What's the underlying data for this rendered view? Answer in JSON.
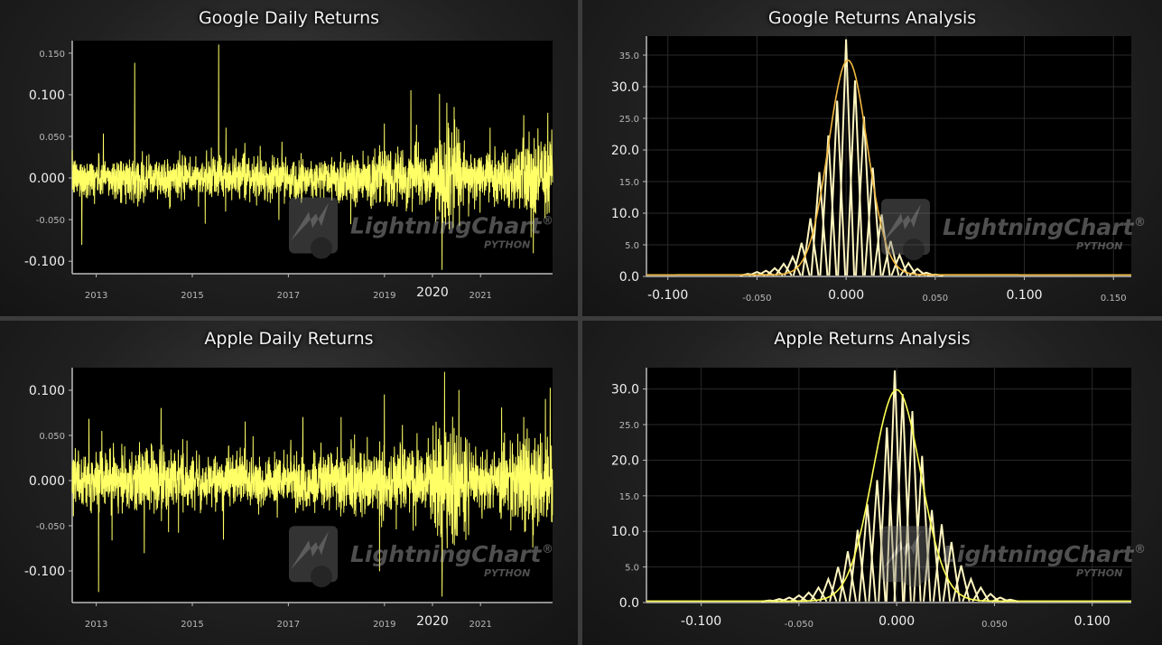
{
  "colors": {
    "line": "#ffff66",
    "bars": "#fff6c0",
    "kde_google": "#f0b840",
    "kde_apple": "#ffff55",
    "axis": "#bbbbbb",
    "plot_bg": "#000000"
  },
  "watermark": {
    "brand": "LightningChart",
    "sub": "PYTHON",
    "reg": "®"
  },
  "panels": [
    {
      "id": "google-daily",
      "title": "Google Daily Returns"
    },
    {
      "id": "google-analysis",
      "title": "Google Returns Analysis"
    },
    {
      "id": "apple-daily",
      "title": "Apple Daily Returns"
    },
    {
      "id": "apple-analysis",
      "title": "Apple Returns Analysis"
    }
  ],
  "chart_data": [
    {
      "type": "line",
      "title": "Google Daily Returns",
      "series": [
        {
          "name": "",
          "approx": "daily returns 2012-2022, noise around 0.000 with spikes"
        }
      ],
      "x_ticks": [
        {
          "label": "2013",
          "year": 2013,
          "major": false
        },
        {
          "label": "2015",
          "year": 2015,
          "major": false
        },
        {
          "label": "2017",
          "year": 2017,
          "major": false
        },
        {
          "label": "2019",
          "year": 2019,
          "major": false
        },
        {
          "label": "2020",
          "year": 2020,
          "major": true
        },
        {
          "label": "2021",
          "year": 2021,
          "major": false
        }
      ],
      "xlim": [
        2012.5,
        2022.5
      ],
      "y_ticks": [
        {
          "label": "0.150",
          "value": 0.15,
          "major": false
        },
        {
          "label": "0.100",
          "value": 0.1,
          "major": true
        },
        {
          "label": "0.050",
          "value": 0.05,
          "major": false
        },
        {
          "label": "0.000",
          "value": 0.0,
          "major": true
        },
        {
          "label": "-0.050",
          "value": -0.05,
          "major": false
        },
        {
          "label": "-0.100",
          "value": -0.1,
          "major": true
        }
      ],
      "ylim": [
        -0.115,
        0.165
      ],
      "noise_scale": 0.012,
      "spikes": [
        {
          "x": 2012.7,
          "y": -0.08
        },
        {
          "x": 2013.15,
          "y": 0.053
        },
        {
          "x": 2013.8,
          "y": 0.138
        },
        {
          "x": 2015.55,
          "y": 0.16
        },
        {
          "x": 2015.7,
          "y": 0.06
        },
        {
          "x": 2016.8,
          "y": -0.05
        },
        {
          "x": 2018.3,
          "y": -0.055
        },
        {
          "x": 2019.0,
          "y": 0.065
        },
        {
          "x": 2019.55,
          "y": 0.105
        },
        {
          "x": 2020.2,
          "y": -0.11
        },
        {
          "x": 2020.3,
          "y": 0.09
        },
        {
          "x": 2020.45,
          "y": 0.085
        },
        {
          "x": 2021.2,
          "y": 0.06
        },
        {
          "x": 2021.9,
          "y": 0.075
        },
        {
          "x": 2022.1,
          "y": -0.09
        },
        {
          "x": 2022.4,
          "y": 0.078
        }
      ],
      "vol_regimes": [
        {
          "from": 2012.5,
          "to": 2018.0,
          "scale": 1.0
        },
        {
          "from": 2018.0,
          "to": 2019.8,
          "scale": 1.35
        },
        {
          "from": 2019.8,
          "to": 2020.0,
          "scale": 1.1
        },
        {
          "from": 2020.0,
          "to": 2020.6,
          "scale": 2.2
        },
        {
          "from": 2020.6,
          "to": 2021.8,
          "scale": 1.3
        },
        {
          "from": 2021.8,
          "to": 2022.5,
          "scale": 2.0
        }
      ]
    },
    {
      "type": "bar",
      "title": "Google Returns Analysis",
      "x_ticks": [
        {
          "label": "-0.100",
          "value": -0.1,
          "major": true
        },
        {
          "label": "-0.050",
          "value": -0.05,
          "major": false
        },
        {
          "label": "0.000",
          "value": 0.0,
          "major": true
        },
        {
          "label": "0.050",
          "value": 0.05,
          "major": false
        },
        {
          "label": "0.100",
          "value": 0.1,
          "major": true
        },
        {
          "label": "0.150",
          "value": 0.15,
          "major": false
        }
      ],
      "xlim": [
        -0.112,
        0.16
      ],
      "y_ticks": [
        {
          "label": "0.0",
          "value": 0,
          "major": true
        },
        {
          "label": "5.0",
          "value": 5,
          "major": false
        },
        {
          "label": "10.0",
          "value": 10,
          "major": true
        },
        {
          "label": "15.0",
          "value": 15,
          "major": false
        },
        {
          "label": "20.0",
          "value": 20,
          "major": true
        },
        {
          "label": "25.0",
          "value": 25,
          "major": false
        },
        {
          "label": "30.0",
          "value": 30,
          "major": true
        },
        {
          "label": "35.0",
          "value": 35,
          "major": false
        }
      ],
      "ylim": [
        0,
        38
      ],
      "bar_width": 0.0045,
      "bins": [
        {
          "x": -0.055,
          "y": 0.4
        },
        {
          "x": -0.05,
          "y": 0.7
        },
        {
          "x": -0.045,
          "y": 0.9
        },
        {
          "x": -0.04,
          "y": 1.3
        },
        {
          "x": -0.035,
          "y": 2.0
        },
        {
          "x": -0.03,
          "y": 3.1
        },
        {
          "x": -0.025,
          "y": 5.3
        },
        {
          "x": -0.02,
          "y": 9.2
        },
        {
          "x": -0.015,
          "y": 16.5
        },
        {
          "x": -0.01,
          "y": 22.3
        },
        {
          "x": -0.005,
          "y": 27.8
        },
        {
          "x": 0.0,
          "y": 37.5
        },
        {
          "x": 0.005,
          "y": 31.0
        },
        {
          "x": 0.01,
          "y": 25.3
        },
        {
          "x": 0.015,
          "y": 17.2
        },
        {
          "x": 0.02,
          "y": 9.8
        },
        {
          "x": 0.025,
          "y": 5.6
        },
        {
          "x": 0.03,
          "y": 3.4
        },
        {
          "x": 0.035,
          "y": 2.1
        },
        {
          "x": 0.04,
          "y": 1.2
        },
        {
          "x": 0.045,
          "y": 0.6
        },
        {
          "x": 0.05,
          "y": 0.3
        }
      ],
      "kde": {
        "mean": 0.001,
        "sigma": 0.0115,
        "peak": 34.2,
        "tail": 0.25
      }
    },
    {
      "type": "line",
      "title": "Apple Daily Returns",
      "series": [
        {
          "name": "",
          "approx": "daily returns 2012-2022, noise around 0.000 with spikes"
        }
      ],
      "x_ticks": [
        {
          "label": "2013",
          "year": 2013,
          "major": false
        },
        {
          "label": "2015",
          "year": 2015,
          "major": false
        },
        {
          "label": "2017",
          "year": 2017,
          "major": false
        },
        {
          "label": "2019",
          "year": 2019,
          "major": false
        },
        {
          "label": "2020",
          "year": 2020,
          "major": true
        },
        {
          "label": "2021",
          "year": 2021,
          "major": false
        }
      ],
      "xlim": [
        2012.5,
        2022.5
      ],
      "y_ticks": [
        {
          "label": "0.100",
          "value": 0.1,
          "major": true
        },
        {
          "label": "0.050",
          "value": 0.05,
          "major": false
        },
        {
          "label": "0.000",
          "value": 0.0,
          "major": true
        },
        {
          "label": "-0.050",
          "value": -0.05,
          "major": false
        },
        {
          "label": "-0.100",
          "value": -0.1,
          "major": true
        }
      ],
      "ylim": [
        -0.135,
        0.125
      ],
      "noise_scale": 0.014,
      "spikes": [
        {
          "x": 2012.85,
          "y": 0.068
        },
        {
          "x": 2013.05,
          "y": -0.123
        },
        {
          "x": 2014.0,
          "y": -0.08
        },
        {
          "x": 2014.35,
          "y": 0.08
        },
        {
          "x": 2015.65,
          "y": -0.065
        },
        {
          "x": 2016.1,
          "y": 0.065
        },
        {
          "x": 2017.3,
          "y": 0.07
        },
        {
          "x": 2018.1,
          "y": 0.07
        },
        {
          "x": 2018.9,
          "y": -0.1
        },
        {
          "x": 2019.0,
          "y": 0.095
        },
        {
          "x": 2019.6,
          "y": -0.055
        },
        {
          "x": 2020.2,
          "y": -0.128
        },
        {
          "x": 2020.25,
          "y": 0.12
        },
        {
          "x": 2020.55,
          "y": 0.1
        },
        {
          "x": 2020.75,
          "y": -0.06
        },
        {
          "x": 2021.9,
          "y": 0.07
        },
        {
          "x": 2022.1,
          "y": -0.06
        },
        {
          "x": 2022.35,
          "y": 0.09
        }
      ],
      "vol_regimes": [
        {
          "from": 2012.5,
          "to": 2015.0,
          "scale": 1.2
        },
        {
          "from": 2015.0,
          "to": 2018.0,
          "scale": 1.0
        },
        {
          "from": 2018.0,
          "to": 2020.0,
          "scale": 1.3
        },
        {
          "from": 2020.0,
          "to": 2020.7,
          "scale": 2.3
        },
        {
          "from": 2020.7,
          "to": 2021.8,
          "scale": 1.3
        },
        {
          "from": 2021.8,
          "to": 2022.5,
          "scale": 1.7
        }
      ]
    },
    {
      "type": "bar",
      "title": "Apple Returns Analysis",
      "x_ticks": [
        {
          "label": "-0.100",
          "value": -0.1,
          "major": true
        },
        {
          "label": "-0.050",
          "value": -0.05,
          "major": false
        },
        {
          "label": "0.000",
          "value": 0.0,
          "major": true
        },
        {
          "label": "0.050",
          "value": 0.05,
          "major": false
        },
        {
          "label": "0.100",
          "value": 0.1,
          "major": true
        }
      ],
      "xlim": [
        -0.128,
        0.12
      ],
      "y_ticks": [
        {
          "label": "0.0",
          "value": 0,
          "major": true
        },
        {
          "label": "5.0",
          "value": 5,
          "major": false
        },
        {
          "label": "10.0",
          "value": 10,
          "major": true
        },
        {
          "label": "15.0",
          "value": 15,
          "major": false
        },
        {
          "label": "20.0",
          "value": 20,
          "major": true
        },
        {
          "label": "25.0",
          "value": 25,
          "major": false
        },
        {
          "label": "30.0",
          "value": 30,
          "major": true
        }
      ],
      "ylim": [
        0,
        33
      ],
      "bar_width": 0.0042,
      "bins": [
        {
          "x": -0.065,
          "y": 0.3
        },
        {
          "x": -0.06,
          "y": 0.5
        },
        {
          "x": -0.055,
          "y": 0.7
        },
        {
          "x": -0.05,
          "y": 1.0
        },
        {
          "x": -0.045,
          "y": 1.4
        },
        {
          "x": -0.04,
          "y": 2.1
        },
        {
          "x": -0.035,
          "y": 3.3
        },
        {
          "x": -0.03,
          "y": 5.0
        },
        {
          "x": -0.025,
          "y": 7.2
        },
        {
          "x": -0.02,
          "y": 10.2
        },
        {
          "x": -0.015,
          "y": 13.8
        },
        {
          "x": -0.01,
          "y": 17.2
        },
        {
          "x": -0.005,
          "y": 24.6
        },
        {
          "x": -0.001,
          "y": 32.6
        },
        {
          "x": 0.003,
          "y": 29.3
        },
        {
          "x": 0.008,
          "y": 26.9
        },
        {
          "x": 0.013,
          "y": 20.6
        },
        {
          "x": 0.018,
          "y": 13.0
        },
        {
          "x": 0.023,
          "y": 11.0
        },
        {
          "x": 0.028,
          "y": 8.5
        },
        {
          "x": 0.033,
          "y": 5.2
        },
        {
          "x": 0.038,
          "y": 3.3
        },
        {
          "x": 0.043,
          "y": 2.1
        },
        {
          "x": 0.048,
          "y": 1.2
        },
        {
          "x": 0.053,
          "y": 0.7
        },
        {
          "x": 0.058,
          "y": 0.4
        }
      ],
      "kde": {
        "mean": 0.0,
        "sigma": 0.013,
        "peak": 29.9,
        "tail": 0.2
      }
    }
  ]
}
